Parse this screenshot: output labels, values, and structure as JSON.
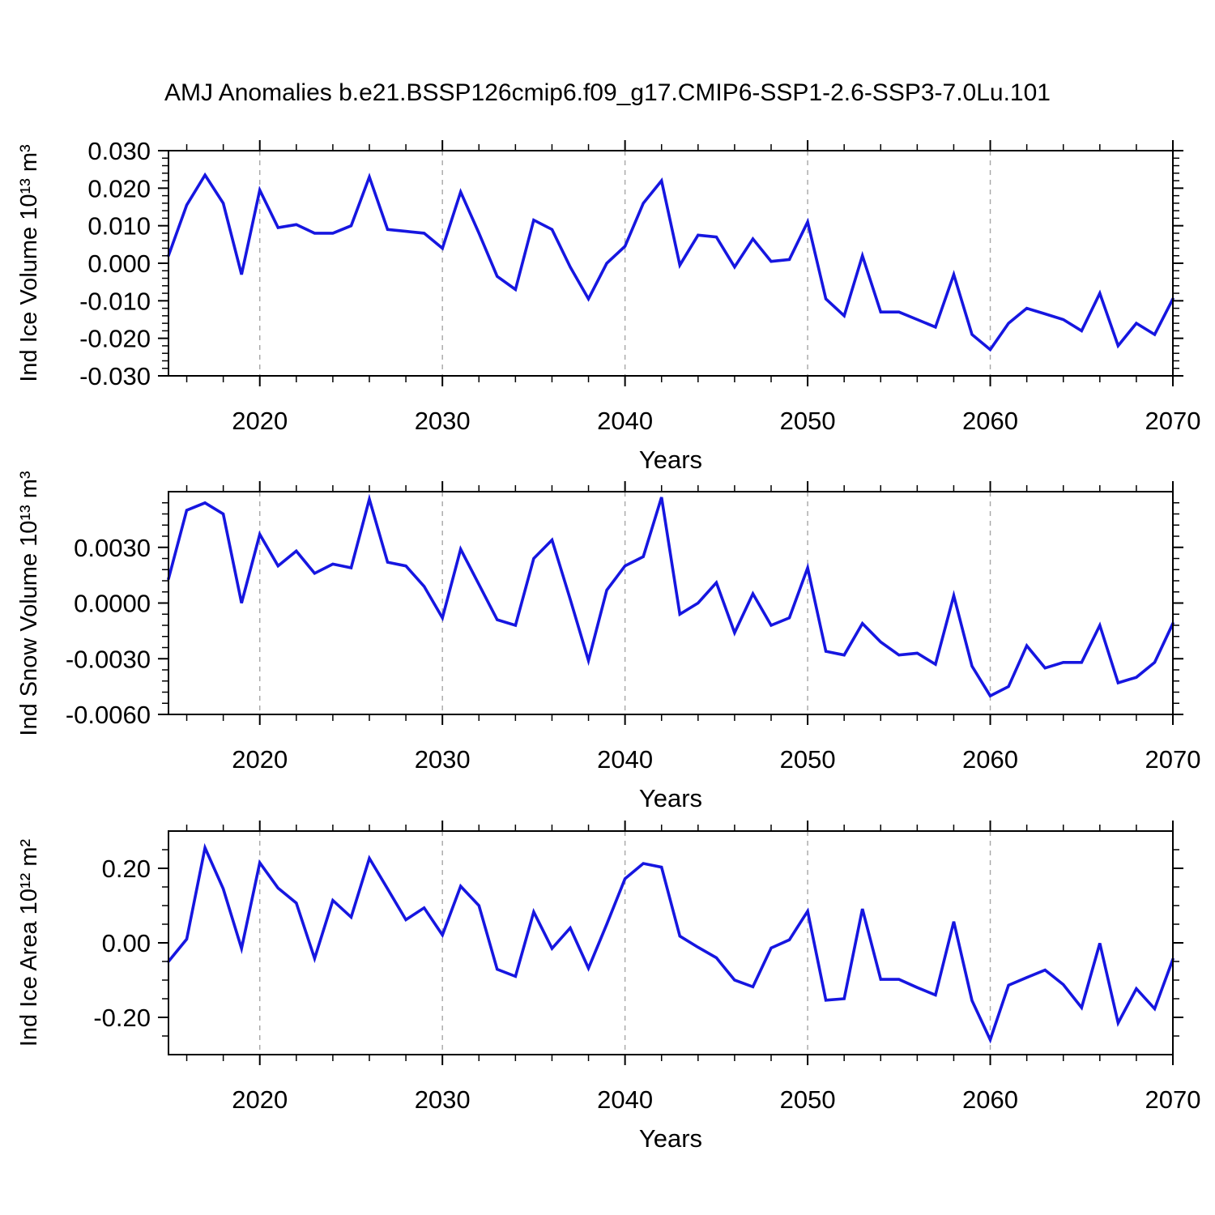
{
  "title": "AMJ Anomalies b.e21.BSSP126cmip6.f09_g17.CMIP6-SSP1-2.6-SSP3-7.0Lu.101",
  "line_color": "#1616e0",
  "grid_color": "#a6a6a6",
  "axis_color": "#000000",
  "years": [
    2015,
    2016,
    2017,
    2018,
    2019,
    2020,
    2021,
    2022,
    2023,
    2024,
    2025,
    2026,
    2027,
    2028,
    2029,
    2030,
    2031,
    2032,
    2033,
    2034,
    2035,
    2036,
    2037,
    2038,
    2039,
    2040,
    2041,
    2042,
    2043,
    2044,
    2045,
    2046,
    2047,
    2048,
    2049,
    2050,
    2051,
    2052,
    2053,
    2054,
    2055,
    2056,
    2057,
    2058,
    2059,
    2060,
    2061,
    2062,
    2063,
    2064,
    2065,
    2066,
    2067,
    2068,
    2069,
    2070
  ],
  "x_axis": {
    "label": "Years",
    "range": [
      2015,
      2070
    ],
    "major_ticks": [
      2020,
      2030,
      2040,
      2050,
      2060,
      2070
    ],
    "tick_labels": [
      "2020",
      "2030",
      "2040",
      "2050",
      "2060",
      "2070"
    ],
    "minor_step": 2,
    "grid_years": [
      2020,
      2030,
      2040,
      2050,
      2060
    ]
  },
  "chart_data": [
    {
      "type": "line",
      "name": "ind-ice-volume",
      "ylabel": "Ind Ice Volume 10¹³ m³",
      "xlabel": "Years",
      "x_range": [
        2015,
        2070
      ],
      "ylim": [
        -0.03,
        0.03
      ],
      "ytick_values": [
        0.03,
        0.02,
        0.01,
        0.0,
        -0.01,
        -0.02,
        -0.03
      ],
      "ytick_labels": [
        "0.030",
        "0.020",
        "0.010",
        "0.000",
        "-0.010",
        "-0.020",
        "-0.030"
      ],
      "minor_y_step": 0.002,
      "grid": "vertical-dashed",
      "legend": "none",
      "values": [
        0.002,
        0.0155,
        0.0235,
        0.016,
        -0.003,
        0.0195,
        0.0095,
        0.0103,
        0.008,
        0.008,
        0.01,
        0.023,
        0.009,
        0.0085,
        0.008,
        0.004,
        0.019,
        0.008,
        -0.0035,
        -0.007,
        0.0115,
        0.009,
        -0.001,
        -0.0095,
        0.0,
        0.0045,
        0.016,
        0.022,
        -0.0005,
        0.0075,
        0.007,
        -0.001,
        0.0065,
        0.0005,
        0.001,
        0.011,
        -0.0095,
        -0.014,
        0.002,
        -0.013,
        -0.013,
        -0.015,
        -0.017,
        -0.003,
        -0.019,
        -0.023,
        -0.016,
        -0.012,
        -0.0135,
        -0.015,
        -0.018,
        -0.008,
        -0.022,
        -0.016,
        -0.019,
        -0.0095
      ]
    },
    {
      "type": "line",
      "name": "ind-snow-volume",
      "ylabel": "Ind Snow Volume 10¹³ m³",
      "xlabel": "Years",
      "x_range": [
        2015,
        2070
      ],
      "ylim": [
        -0.006,
        0.006
      ],
      "ytick_values": [
        0.003,
        0.0,
        -0.003,
        -0.006
      ],
      "ytick_labels": [
        "0.0030",
        "0.0000",
        "-0.0030",
        "-0.0060"
      ],
      "minor_y_step": 0.0006,
      "grid": "vertical-dashed",
      "legend": "none",
      "values": [
        0.0013,
        0.005,
        0.0054,
        0.0048,
        0.0,
        0.0037,
        0.002,
        0.0028,
        0.0016,
        0.0021,
        0.0019,
        0.0056,
        0.0022,
        0.002,
        0.0009,
        -0.0008,
        0.0029,
        0.001,
        -0.0009,
        -0.0012,
        0.0024,
        0.0034,
        0.0002,
        -0.0031,
        0.0007,
        0.002,
        0.0025,
        0.0057,
        -0.0006,
        0.0,
        0.0011,
        -0.0016,
        0.0005,
        -0.0012,
        -0.0008,
        0.0019,
        -0.0026,
        -0.0028,
        -0.0011,
        -0.0021,
        -0.0028,
        -0.0027,
        -0.0033,
        0.0004,
        -0.0034,
        -0.005,
        -0.0045,
        -0.0023,
        -0.0035,
        -0.0032,
        -0.0032,
        -0.0012,
        -0.0043,
        -0.004,
        -0.0032,
        -0.0011
      ]
    },
    {
      "type": "line",
      "name": "ind-ice-area",
      "ylabel": "Ind Ice Area 10¹² m²",
      "xlabel": "Years",
      "x_range": [
        2015,
        2070
      ],
      "ylim": [
        -0.3,
        0.3
      ],
      "ytick_values": [
        0.2,
        0.0,
        -0.2
      ],
      "ytick_labels": [
        "0.20",
        "0.00",
        "-0.20"
      ],
      "minor_y_step": 0.05,
      "grid": "vertical-dashed",
      "legend": "none",
      "values": [
        -0.05,
        0.01,
        0.255,
        0.145,
        -0.015,
        0.215,
        0.147,
        0.107,
        -0.042,
        0.114,
        0.069,
        0.227,
        0.145,
        0.062,
        0.094,
        0.021,
        0.152,
        0.1,
        -0.071,
        -0.09,
        0.083,
        -0.015,
        0.04,
        -0.068,
        0.05,
        0.172,
        0.213,
        0.203,
        0.018,
        -0.012,
        -0.04,
        -0.1,
        -0.118,
        -0.014,
        0.008,
        0.085,
        -0.154,
        -0.15,
        0.091,
        -0.098,
        -0.098,
        -0.12,
        -0.14,
        0.057,
        -0.155,
        -0.26,
        -0.114,
        -0.093,
        -0.073,
        -0.112,
        -0.174,
        -0.001,
        -0.215,
        -0.123,
        -0.177,
        -0.044
      ]
    }
  ]
}
